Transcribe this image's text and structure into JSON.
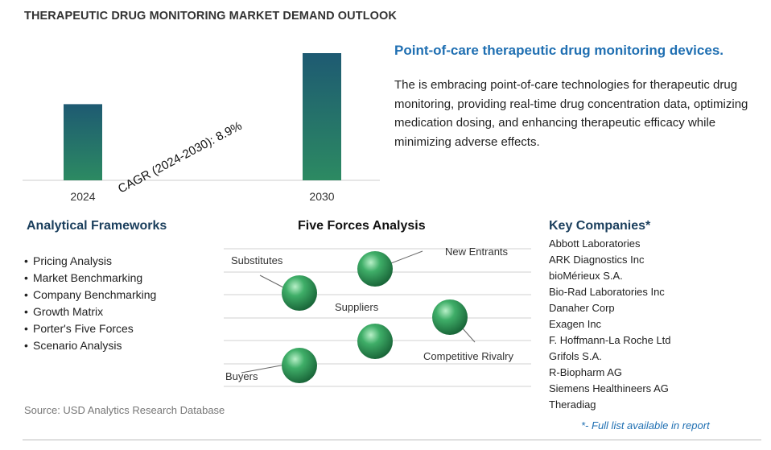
{
  "page_title": "THERAPEUTIC DRUG MONITORING MARKET DEMAND OUTLOOK",
  "colors": {
    "bar_top": "#1e5a72",
    "bar_bottom": "#2c8a62",
    "accent_blue": "#1f6fb2",
    "sphere": "#2e9a5a"
  },
  "chart_data": {
    "type": "bar",
    "categories": [
      "2024",
      "2030"
    ],
    "values": [
      1.0,
      1.67
    ],
    "annotation": "CAGR (2024-2030):   8.9%",
    "cagr_label": "CAGR (2024-2030):",
    "cagr_value": "8.9%"
  },
  "highlight": {
    "title": "Point-of-care therapeutic drug monitoring devices.",
    "body": "The is embracing point-of-care technologies for therapeutic drug monitoring, providing real-time drug concentration data, optimizing medication dosing, and enhancing therapeutic efficacy while minimizing adverse effects."
  },
  "analytical_frameworks": {
    "title": "Analytical Frameworks",
    "items": [
      "Pricing Analysis",
      "Market Benchmarking",
      "Company Benchmarking",
      "Growth Matrix",
      "Porter's Five Forces",
      "Scenario Analysis"
    ]
  },
  "five_forces": {
    "title": "Five Forces Analysis",
    "forces": [
      "New Entrants",
      "Substitutes",
      "Suppliers",
      "Competitive Rivalry",
      "Buyers"
    ]
  },
  "key_companies": {
    "title": "Key Companies*",
    "items": [
      "Abbott Laboratories",
      "ARK Diagnostics Inc",
      "bioMérieux S.A.",
      "Bio-Rad Laboratories Inc",
      "Danaher Corp",
      "Exagen Inc",
      "F. Hoffmann-La Roche Ltd",
      "Grifols S.A.",
      "R-Biopharm AG",
      "Siemens Healthineers AG",
      "Theradiag"
    ],
    "note": "*- Full list available in report"
  },
  "source": "Source: USD Analytics Research Database"
}
